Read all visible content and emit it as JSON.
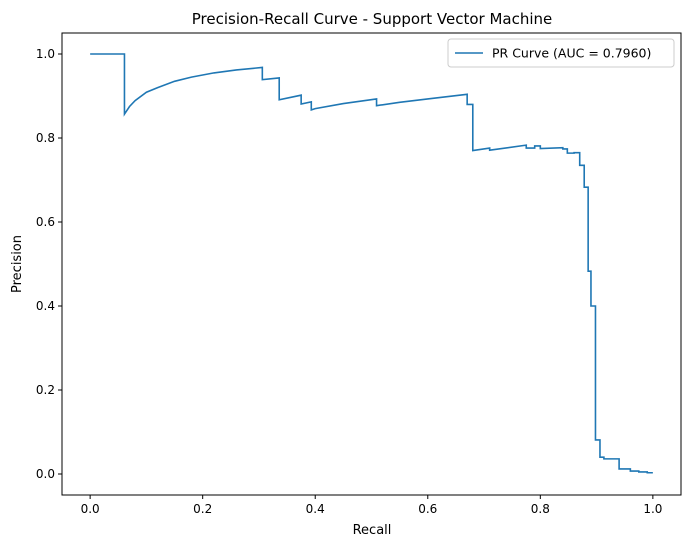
{
  "chart_data": {
    "type": "line",
    "title": "Precision-Recall Curve - Support Vector Machine",
    "xlabel": "Recall",
    "ylabel": "Precision",
    "xlim": [
      -0.05,
      1.05
    ],
    "ylim": [
      -0.05,
      1.05
    ],
    "xticks": [
      0.0,
      0.2,
      0.4,
      0.6,
      0.8,
      1.0
    ],
    "xtick_labels": [
      "0.0",
      "0.2",
      "0.4",
      "0.6",
      "0.8",
      "1.0"
    ],
    "yticks": [
      0.0,
      0.2,
      0.4,
      0.6,
      0.8,
      1.0
    ],
    "ytick_labels": [
      "0.0",
      "0.2",
      "0.4",
      "0.6",
      "0.8",
      "1.0"
    ],
    "grid": false,
    "legend_position": "upper-right",
    "series": [
      {
        "name": "PR Curve (AUC = 0.7960)",
        "color": "#1f77b4",
        "x": [
          0.0,
          0.061,
          0.061,
          0.07,
          0.08,
          0.1,
          0.12,
          0.15,
          0.18,
          0.22,
          0.26,
          0.306,
          0.306,
          0.336,
          0.336,
          0.375,
          0.375,
          0.393,
          0.393,
          0.4,
          0.45,
          0.509,
          0.509,
          0.55,
          0.6,
          0.67,
          0.67,
          0.68,
          0.68,
          0.71,
          0.71,
          0.775,
          0.775,
          0.79,
          0.79,
          0.8,
          0.8,
          0.84,
          0.84,
          0.848,
          0.848,
          0.86,
          0.86,
          0.87,
          0.87,
          0.878,
          0.878,
          0.885,
          0.885,
          0.89,
          0.89,
          0.898,
          0.898,
          0.906,
          0.906,
          0.913,
          0.913,
          0.92,
          0.92,
          0.94,
          0.94,
          0.96,
          0.96,
          0.975,
          0.975,
          0.99,
          0.99,
          1.0
        ],
        "y": [
          1.0,
          1.0,
          0.857,
          0.875,
          0.889,
          0.909,
          0.92,
          0.935,
          0.945,
          0.955,
          0.962,
          0.968,
          0.939,
          0.943,
          0.891,
          0.902,
          0.881,
          0.886,
          0.867,
          0.87,
          0.882,
          0.893,
          0.877,
          0.885,
          0.893,
          0.904,
          0.88,
          0.88,
          0.77,
          0.776,
          0.771,
          0.783,
          0.776,
          0.776,
          0.781,
          0.781,
          0.775,
          0.777,
          0.774,
          0.774,
          0.764,
          0.764,
          0.765,
          0.765,
          0.735,
          0.735,
          0.683,
          0.683,
          0.483,
          0.483,
          0.4,
          0.4,
          0.081,
          0.081,
          0.04,
          0.04,
          0.036,
          0.036,
          0.036,
          0.036,
          0.012,
          0.012,
          0.007,
          0.007,
          0.005,
          0.005,
          0.003,
          0.003
        ]
      }
    ]
  }
}
